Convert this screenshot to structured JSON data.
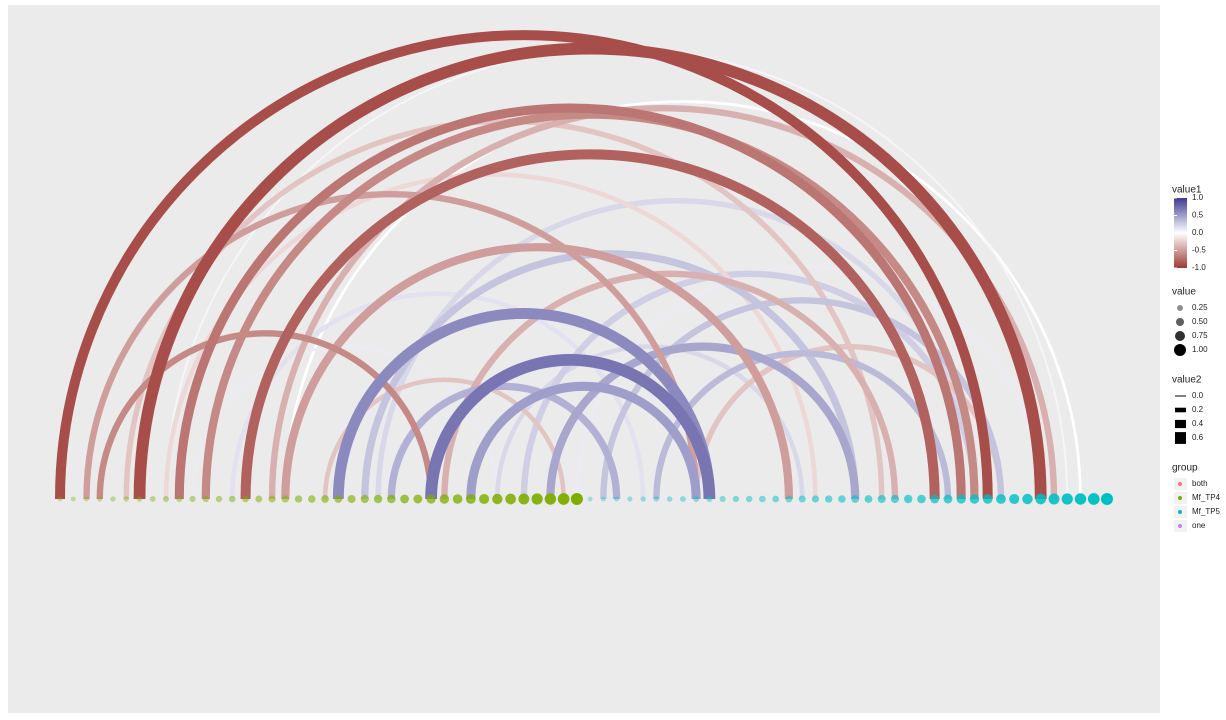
{
  "chart_data": {
    "type": "arc",
    "xlim": [
      0,
      79
    ],
    "groups_title": "group",
    "groups": [
      {
        "name": "both",
        "color": "#f8766d"
      },
      {
        "name": "Mf_TP4",
        "color": "#7cae00",
        "node_values": [
          0.1,
          0.12,
          0.14,
          0.15,
          0.17,
          0.18,
          0.2,
          0.22,
          0.24,
          0.25,
          0.27,
          0.29,
          0.3,
          0.32,
          0.34,
          0.36,
          0.38,
          0.4,
          0.42,
          0.44,
          0.46,
          0.48,
          0.5,
          0.52,
          0.55,
          0.57,
          0.6,
          0.62,
          0.65,
          0.68,
          0.7,
          0.73,
          0.76,
          0.8,
          0.83,
          0.86,
          0.9,
          0.93,
          0.96,
          1.0
        ]
      },
      {
        "name": "Mf_TP5",
        "color": "#00bfc4",
        "node_values": [
          0.1,
          0.12,
          0.14,
          0.15,
          0.17,
          0.18,
          0.2,
          0.22,
          0.24,
          0.25,
          0.27,
          0.29,
          0.3,
          0.32,
          0.34,
          0.36,
          0.38,
          0.4,
          0.42,
          0.44,
          0.46,
          0.48,
          0.5,
          0.52,
          0.55,
          0.57,
          0.6,
          0.62,
          0.65,
          0.68,
          0.7,
          0.73,
          0.76,
          0.8,
          0.83,
          0.86,
          0.9,
          0.93,
          0.96,
          1.0
        ]
      },
      {
        "name": "one",
        "color": "#c77cff"
      }
    ],
    "arcs": [
      {
        "from": 17,
        "to": 77,
        "value1": 0.0,
        "value2": 0.1
      },
      {
        "from": 8,
        "to": 76,
        "value1": 0.05,
        "value2": 0.05
      },
      {
        "from": 10,
        "to": 33,
        "value1": 0.1,
        "value2": 0.1
      },
      {
        "from": 39,
        "to": 74,
        "value1": 0.1,
        "value2": 0.15
      },
      {
        "from": 13,
        "to": 44,
        "value1": 0.15,
        "value2": 0.2
      },
      {
        "from": 24,
        "to": 69,
        "value1": 0.2,
        "value2": 0.25
      },
      {
        "from": 33,
        "to": 56,
        "value1": 0.2,
        "value2": 0.2
      },
      {
        "from": 35,
        "to": 69,
        "value1": 0.25,
        "value2": 0.3
      },
      {
        "from": 8,
        "to": 57,
        "value1": -0.2,
        "value2": 0.2
      },
      {
        "from": 5,
        "to": 62,
        "value1": -0.3,
        "value2": 0.25
      },
      {
        "from": 48,
        "to": 71,
        "value1": -0.3,
        "value2": 0.25
      },
      {
        "from": 20,
        "to": 38,
        "value1": -0.3,
        "value2": 0.2
      },
      {
        "from": 41,
        "to": 71,
        "value1": 0.3,
        "value2": 0.3
      },
      {
        "from": 23,
        "to": 60,
        "value1": 0.3,
        "value2": 0.35
      },
      {
        "from": 45,
        "to": 67,
        "value1": 0.35,
        "value2": 0.3
      },
      {
        "from": 16,
        "to": 75,
        "value1": -0.4,
        "value2": 0.3
      },
      {
        "from": 29,
        "to": 63,
        "value1": -0.4,
        "value2": 0.3
      },
      {
        "from": 25,
        "to": 42,
        "value1": 0.4,
        "value2": 0.35
      },
      {
        "from": 37,
        "to": 60,
        "value1": 0.45,
        "value2": 0.4
      },
      {
        "from": 2,
        "to": 48,
        "value1": -0.5,
        "value2": 0.3
      },
      {
        "from": 17,
        "to": 55,
        "value1": -0.5,
        "value2": 0.4
      },
      {
        "from": 31,
        "to": 48,
        "value1": 0.5,
        "value2": 0.45
      },
      {
        "from": 11,
        "to": 69,
        "value1": -0.6,
        "value2": 0.4
      },
      {
        "from": 3,
        "to": 28,
        "value1": -0.6,
        "value2": 0.3
      },
      {
        "from": 21,
        "to": 49,
        "value1": 0.6,
        "value2": 0.55
      },
      {
        "from": 28,
        "to": 49,
        "value1": 0.7,
        "value2": 0.6
      },
      {
        "from": 9,
        "to": 68,
        "value1": -0.7,
        "value2": 0.45
      },
      {
        "from": 14,
        "to": 66,
        "value1": -0.8,
        "value2": 0.5
      },
      {
        "from": 0,
        "to": 70,
        "value1": -0.9,
        "value2": 0.5
      },
      {
        "from": 6,
        "to": 74,
        "value1": -0.9,
        "value2": 0.6
      }
    ],
    "value1_title": "value1",
    "value1_lim": [
      -1,
      1
    ],
    "value1_ticks": [
      {
        "value": 1,
        "label": "1.0"
      },
      {
        "value": 0.5,
        "label": "0.5"
      },
      {
        "value": 0,
        "label": "0.0"
      },
      {
        "value": -0.5,
        "label": "-0.5"
      },
      {
        "value": -1,
        "label": "-1.0"
      }
    ],
    "value_title": "value",
    "value_ticks": [
      {
        "value": 0.25,
        "label": "0.25"
      },
      {
        "value": 0.5,
        "label": "0.50"
      },
      {
        "value": 0.75,
        "label": "0.75"
      },
      {
        "value": 1,
        "label": "1.00"
      }
    ],
    "value2_title": "value2",
    "value2_ticks": [
      {
        "value": 0,
        "label": "0.0"
      },
      {
        "value": 0.2,
        "label": "0.2"
      },
      {
        "value": 0.4,
        "label": "0.4"
      },
      {
        "value": 0.6,
        "label": "0.6"
      }
    ]
  }
}
